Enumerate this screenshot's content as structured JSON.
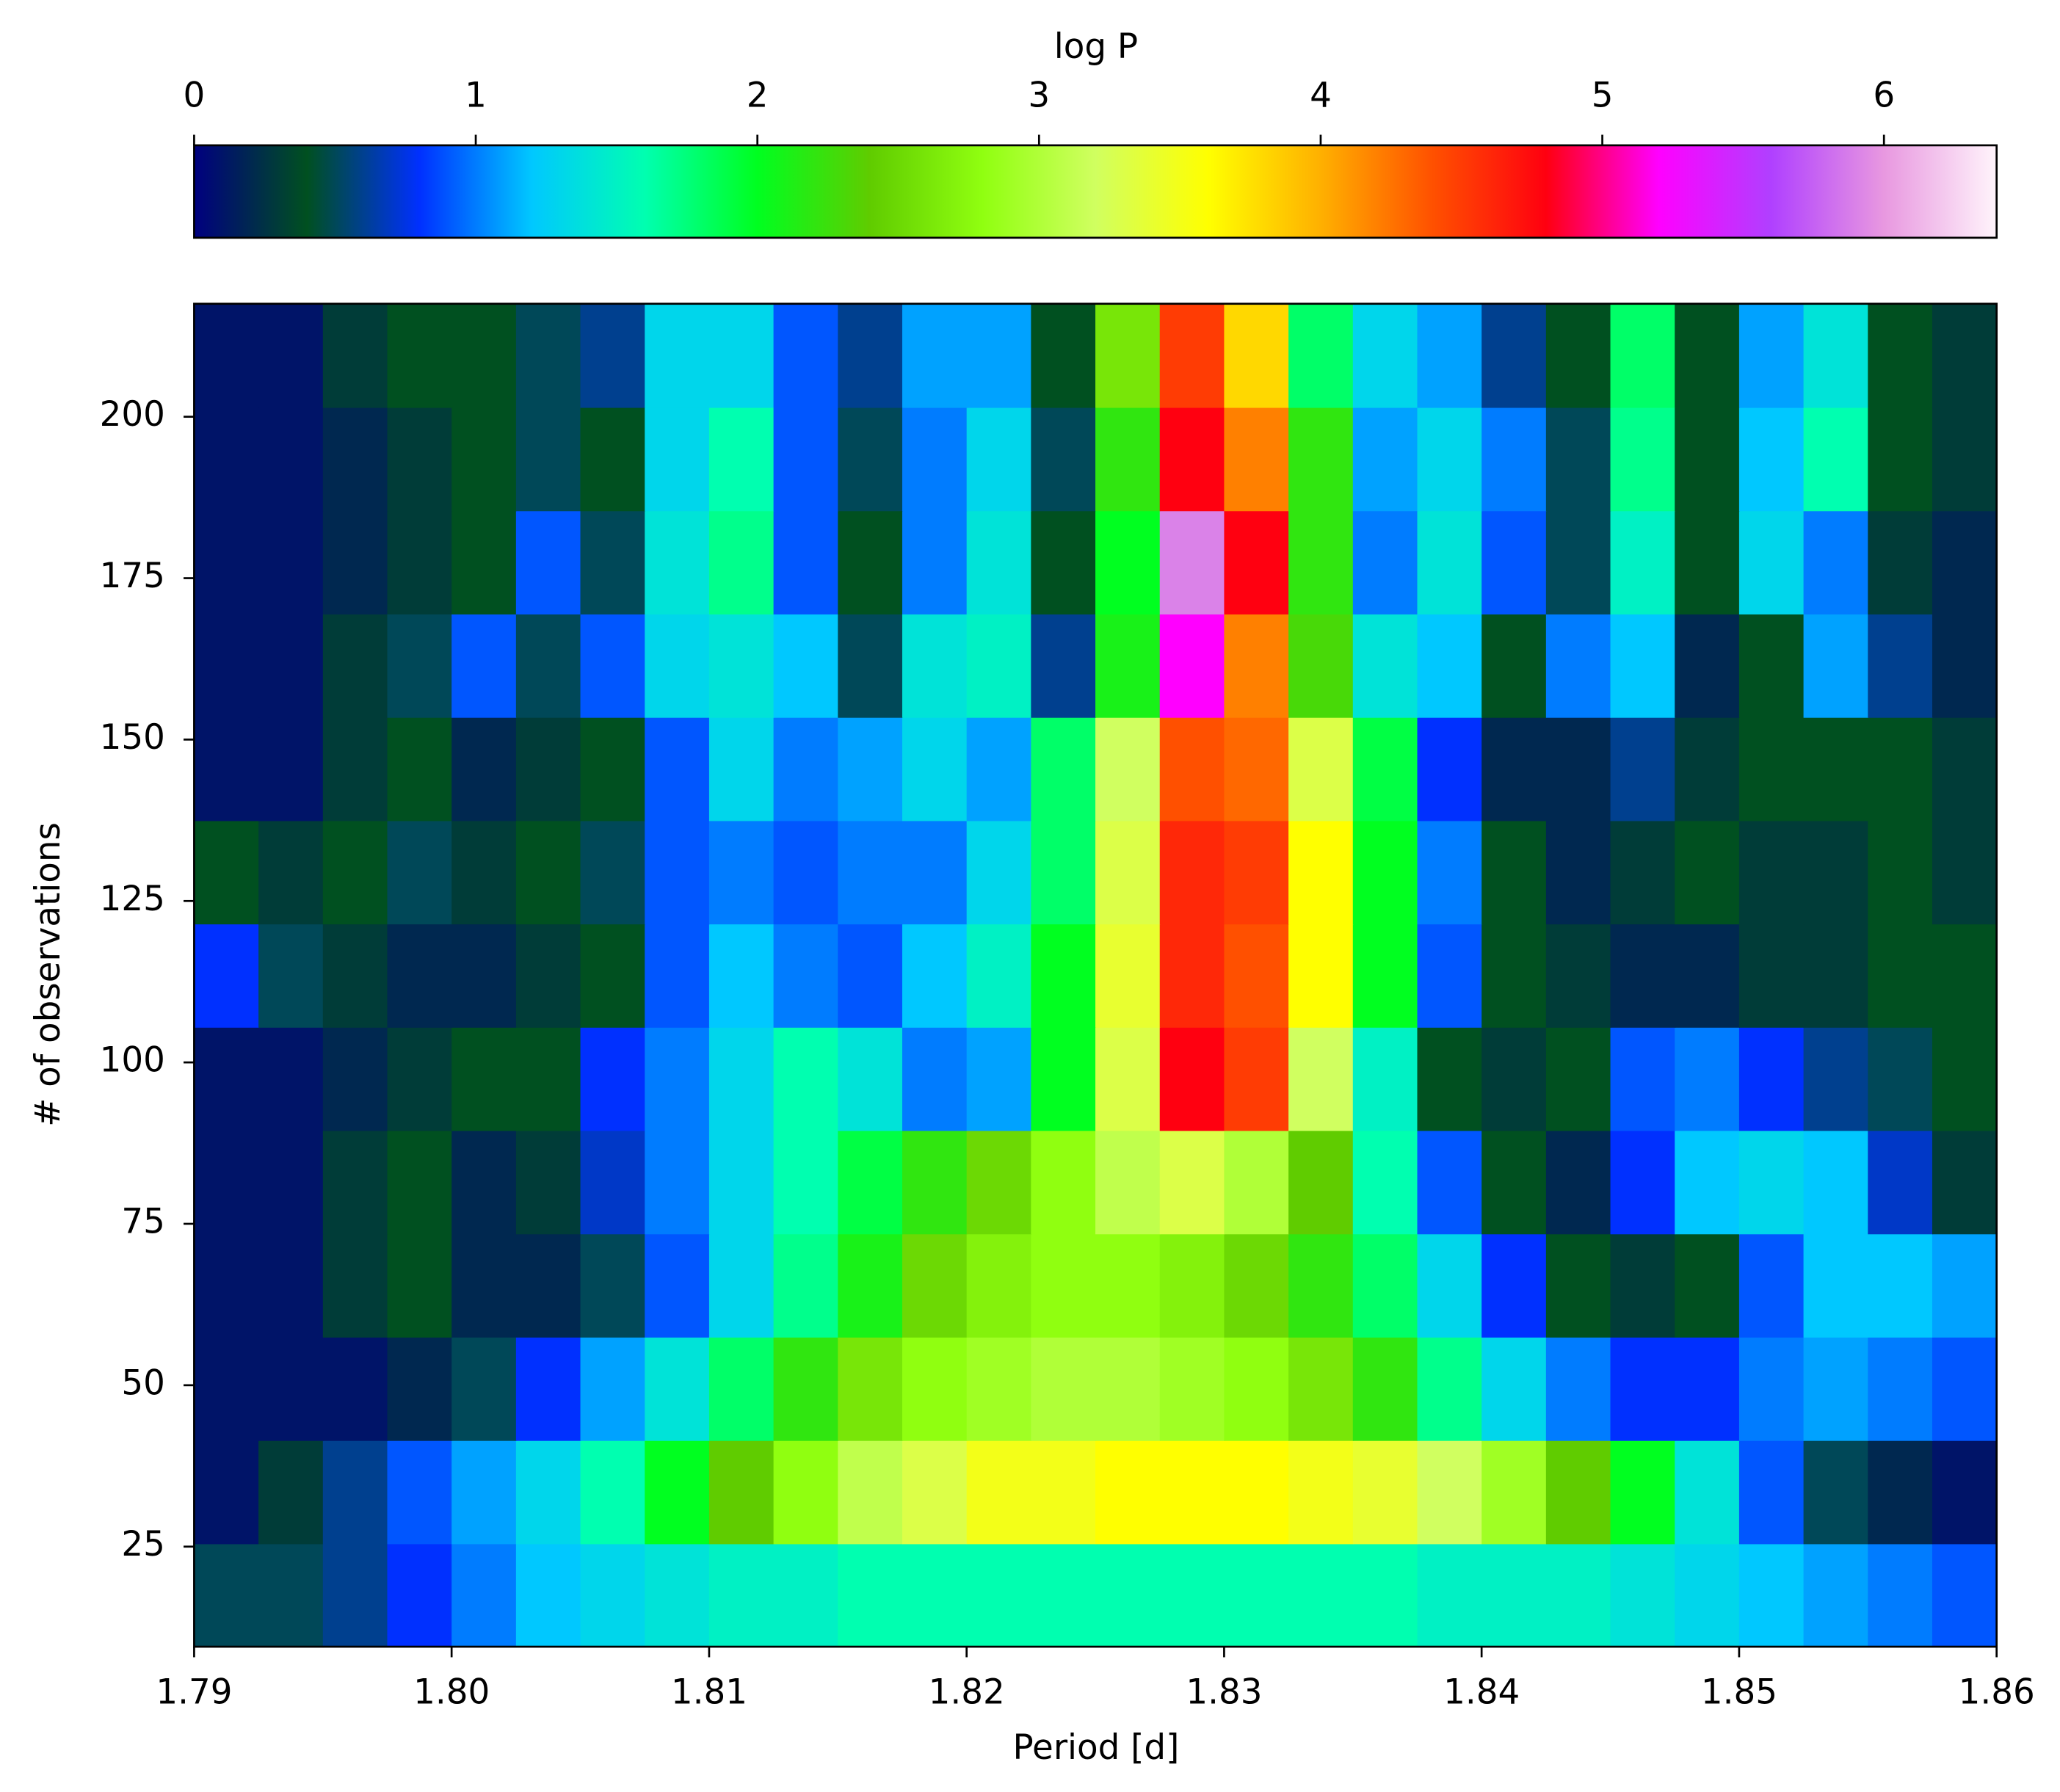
{
  "chart_data": {
    "type": "heatmap",
    "xlabel": "Period [d]",
    "ylabel": "# of observations",
    "xlim": [
      1.79,
      1.86
    ],
    "ylim": [
      9.5,
      217.5
    ],
    "xticks": [
      1.79,
      {
        "value": 1.8,
        "label": "1.80"
      },
      1.81,
      1.82,
      1.83,
      1.84,
      1.85,
      1.86
    ],
    "yticks": [
      25,
      50,
      75,
      100,
      125,
      150,
      175,
      200
    ],
    "x": [
      1.79125,
      1.79375,
      1.79625,
      1.79875,
      1.80125,
      1.80375,
      1.80625,
      1.80875,
      1.81125,
      1.81375,
      1.81625,
      1.81875,
      1.82125,
      1.82375,
      1.82625,
      1.82875,
      1.83125,
      1.83375,
      1.83625,
      1.83875,
      1.84125,
      1.84375,
      1.84625,
      1.84875,
      1.85125,
      1.85375,
      1.85625,
      1.85875
    ],
    "y": [
      17.5,
      33.5,
      49.5,
      65.5,
      81.5,
      97.5,
      113.5,
      129.5,
      145.5,
      161.5,
      177.5,
      193.5,
      209.5
    ],
    "values": [
      [
        0.5,
        0.5,
        0.6,
        0.8,
        1.0,
        1.2,
        1.3,
        1.4,
        1.5,
        1.5,
        1.6,
        1.6,
        1.6,
        1.6,
        1.6,
        1.6,
        1.6,
        1.6,
        1.6,
        1.5,
        1.5,
        1.5,
        1.4,
        1.3,
        1.2,
        1.1,
        1.0,
        0.9
      ],
      [
        0.1,
        0.3,
        0.6,
        0.9,
        1.1,
        1.3,
        1.6,
        2.0,
        2.4,
        2.8,
        3.1,
        3.3,
        3.5,
        3.5,
        3.6,
        3.6,
        3.6,
        3.5,
        3.4,
        3.2,
        2.9,
        2.4,
        2.0,
        1.4,
        0.9,
        0.5,
        0.2,
        0.1
      ],
      [
        0.1,
        0.1,
        0.1,
        0.2,
        0.5,
        0.8,
        1.1,
        1.4,
        1.8,
        2.2,
        2.6,
        2.8,
        2.9,
        3.0,
        3.0,
        2.9,
        2.8,
        2.6,
        2.2,
        1.7,
        1.3,
        1.0,
        0.8,
        0.8,
        1.0,
        1.1,
        1.0,
        0.9
      ],
      [
        0.1,
        0.1,
        0.3,
        0.4,
        0.2,
        0.2,
        0.5,
        0.9,
        1.3,
        1.7,
        2.1,
        2.5,
        2.7,
        2.8,
        2.8,
        2.7,
        2.5,
        2.2,
        1.8,
        1.3,
        0.8,
        0.4,
        0.3,
        0.4,
        0.9,
        1.2,
        1.2,
        1.1
      ],
      [
        0.1,
        0.1,
        0.3,
        0.4,
        0.2,
        0.3,
        0.7,
        1.0,
        1.3,
        1.6,
        1.9,
        2.2,
        2.5,
        2.8,
        3.1,
        3.3,
        3.0,
        2.4,
        1.6,
        0.9,
        0.4,
        0.2,
        0.8,
        1.2,
        1.3,
        1.2,
        0.7,
        0.3
      ],
      [
        0.1,
        0.1,
        0.2,
        0.3,
        0.4,
        0.4,
        0.8,
        1.0,
        1.3,
        1.6,
        1.4,
        1.0,
        1.1,
        2.0,
        3.3,
        4.8,
        4.5,
        3.2,
        1.5,
        0.4,
        0.3,
        0.4,
        0.9,
        1.0,
        0.8,
        0.6,
        0.5,
        0.4
      ],
      [
        0.8,
        0.5,
        0.3,
        0.2,
        0.2,
        0.3,
        0.4,
        0.9,
        1.2,
        1.0,
        0.9,
        1.2,
        1.5,
        2.0,
        3.4,
        4.6,
        4.4,
        3.6,
        2.0,
        0.9,
        0.4,
        0.3,
        0.2,
        0.2,
        0.3,
        0.3,
        0.4,
        0.4
      ],
      [
        0.4,
        0.3,
        0.4,
        0.5,
        0.3,
        0.4,
        0.5,
        0.9,
        1.0,
        0.9,
        1.0,
        1.0,
        1.3,
        1.8,
        3.3,
        4.6,
        4.5,
        3.6,
        2.0,
        1.0,
        0.4,
        0.2,
        0.3,
        0.4,
        0.3,
        0.3,
        0.4,
        0.3
      ],
      [
        0.1,
        0.1,
        0.3,
        0.4,
        0.2,
        0.3,
        0.4,
        0.9,
        1.3,
        1.0,
        1.1,
        1.3,
        1.1,
        1.8,
        3.2,
        4.4,
        4.3,
        3.3,
        1.9,
        0.8,
        0.2,
        0.2,
        0.6,
        0.3,
        0.4,
        0.4,
        0.4,
        0.3
      ],
      [
        0.1,
        0.1,
        0.3,
        0.5,
        0.9,
        0.5,
        0.9,
        1.3,
        1.4,
        1.2,
        0.5,
        1.4,
        1.5,
        0.6,
        2.1,
        5.2,
        4.2,
        2.3,
        1.4,
        1.2,
        0.4,
        1.0,
        1.2,
        0.2,
        0.4,
        1.1,
        0.6,
        0.2
      ],
      [
        0.1,
        0.1,
        0.2,
        0.3,
        0.4,
        0.9,
        0.5,
        1.4,
        1.7,
        0.9,
        0.4,
        1.0,
        1.4,
        0.4,
        2.0,
        5.9,
        4.8,
        2.2,
        1.0,
        1.4,
        0.9,
        0.5,
        1.5,
        0.4,
        1.3,
        1.0,
        0.3,
        0.2
      ],
      [
        0.1,
        0.1,
        0.2,
        0.3,
        0.4,
        0.5,
        0.4,
        1.3,
        1.6,
        0.9,
        0.5,
        1.0,
        1.3,
        0.5,
        2.2,
        4.8,
        4.2,
        2.2,
        1.1,
        1.3,
        1.0,
        0.5,
        1.7,
        0.4,
        1.2,
        1.6,
        0.4,
        0.3
      ],
      [
        0.1,
        0.1,
        0.3,
        0.4,
        0.4,
        0.5,
        0.6,
        1.3,
        1.3,
        0.9,
        0.6,
        1.1,
        1.1,
        0.4,
        2.6,
        4.5,
        3.8,
        1.8,
        1.3,
        1.1,
        0.6,
        0.4,
        1.8,
        0.4,
        1.1,
        1.4,
        0.4,
        0.3
      ]
    ],
    "colorbar": {
      "label": "log P",
      "lim": [
        0,
        6.4
      ],
      "ticks": [
        0,
        1,
        2,
        3,
        4,
        5,
        6
      ],
      "colors": [
        "#000080",
        "#005020",
        "#0030ff",
        "#00c8ff",
        "#00ffb0",
        "#00ff20",
        "#60cc00",
        "#90ff10",
        "#d0ff60",
        "#ffff00",
        "#ffb000",
        "#ff5000",
        "#ff0010",
        "#ff00ff",
        "#b040ff",
        "#e898e0",
        "#fff4fb"
      ]
    }
  }
}
